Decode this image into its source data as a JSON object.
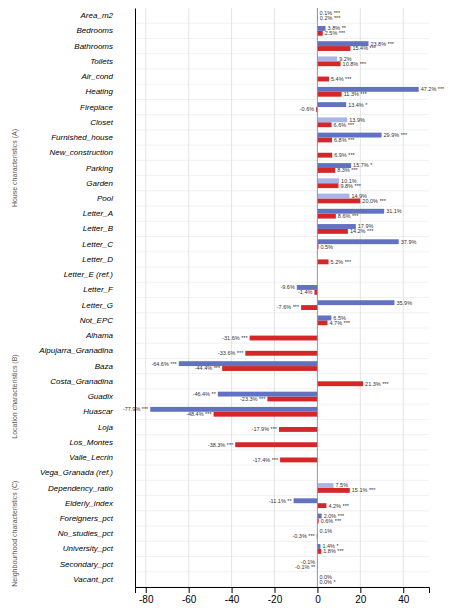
{
  "chart_data": {
    "type": "bar",
    "orientation": "horizontal",
    "grid": true,
    "data_labels": true,
    "categories": [
      "Area_m2",
      "Bedrooms",
      "Bathrooms",
      "Toilets",
      "Air_cond",
      "Heating",
      "Fireplace",
      "Closet",
      "Furnished_house",
      "New_construction",
      "Parking",
      "Garden",
      "Pool",
      "Letter_A",
      "Letter_B",
      "Letter_C",
      "Letter_D",
      "Letter_E (ref.)",
      "Letter_F",
      "Letter_G",
      "Not_EPC",
      "Alhama",
      "Alpujarra_Granadina",
      "Baza",
      "Costa_Granadina",
      "Guadix",
      "Huascar",
      "Loja",
      "Los_Montes",
      "Valle_Lecrin",
      "Vega_Granada (ref.)",
      "Dependency_ratio",
      "Elderly_index",
      "Foreigners_pct",
      "No_studies_pct",
      "University_pct",
      "Secondary_pct",
      "Vacant_pct"
    ],
    "series": [
      {
        "color": "#d62728",
        "values": [
          0.2,
          2.5,
          15.4,
          10.8,
          5.4,
          11.3,
          -0.6,
          6.6,
          6.8,
          6.9,
          8.3,
          9.8,
          20.0,
          8.6,
          14.2,
          0.5,
          5.2,
          0.0,
          -1.4,
          -7.6,
          4.7,
          -31.6,
          -33.6,
          -44.4,
          21.3,
          -23.3,
          -48.4,
          -17.9,
          -38.3,
          -17.4,
          0.0,
          15.1,
          4.2,
          0.6,
          -0.3,
          1.8,
          -0.1,
          0.0
        ],
        "value_labels": [
          "0.2% ***",
          "2.5% ***",
          "15.4% ***",
          "10.8% ***",
          "5.4% ***",
          "11.3% ***",
          "-0.6%",
          "6.6% ***",
          "6.8% ***",
          "6.9% ***",
          "8.3% ***",
          "9.8% ***",
          "20.0% ***",
          "8.6% ***",
          "14.2% ***",
          "0.5%",
          "5.2% ***",
          null,
          "-1.4%",
          "-7.6% ***",
          "4.7% ***",
          "-31.6% ***",
          "-33.6% ***",
          "-44.4% ***",
          "21.3% ***",
          "-23.3% ***",
          "-48.4% ***",
          "-17.9% ***",
          "-38.3% ***",
          "-17.4% ***",
          null,
          "15.1% ***",
          "4.2% ***",
          "0.6% ***",
          "-0.3% ***",
          "1.8% ***",
          "-0.1% **",
          "0.0% *"
        ]
      },
      {
        "colors": [
          "#6272c3",
          "#6272c3",
          "#6272c3",
          "#aab4e8",
          "#6272c3",
          "#6272c3",
          "#6272c3",
          "#aab4e8",
          "#6272c3",
          "#6272c3",
          "#6272c3",
          "#aab4e8",
          "#aab4e8",
          "#6272c3",
          "#6272c3",
          "#6272c3",
          "#6272c3",
          "#6272c3",
          "#6272c3",
          "#6272c3",
          "#6272c3",
          "#6272c3",
          "#6272c3",
          "#6272c3",
          "#6272c3",
          "#6272c3",
          "#6272c3",
          "#6272c3",
          "#6272c3",
          "#6272c3",
          "#6272c3",
          "#aab4e8",
          "#6272c3",
          "#6272c3",
          "#6272c3",
          "#6272c3",
          "#6272c3",
          "#6272c3"
        ],
        "values": [
          0.1,
          3.8,
          23.8,
          9.2,
          0.0,
          47.2,
          13.4,
          13.9,
          29.9,
          0.0,
          15.7,
          10.1,
          14.9,
          31.1,
          17.9,
          37.9,
          0.0,
          0.0,
          -9.6,
          35.9,
          6.5,
          0.0,
          0.0,
          -64.6,
          0.0,
          -46.4,
          -77.9,
          0.0,
          0.0,
          0.0,
          0.0,
          7.5,
          -11.1,
          2.0,
          0.1,
          1.4,
          -0.1,
          0.0
        ],
        "value_labels": [
          "0.1% ***",
          "3.8% **",
          "23.8% ***",
          "9.2%",
          null,
          "47.2% ***",
          "13.4% *",
          "13.9%",
          "29.9% ***",
          null,
          "15.7% *",
          "10.1%",
          "14.9%",
          "31.1%",
          "17.9%",
          "37.9%",
          null,
          null,
          "-9.6%",
          "35.9%",
          "6.5%",
          null,
          null,
          "-64.6% ***",
          null,
          "-46.4% **",
          "-77.9% ***",
          null,
          null,
          null,
          null,
          "7.5%",
          "-11.1% **",
          "2.0% ***",
          "0.1%",
          "1.4% *",
          "-0.1%",
          "0.0%"
        ]
      }
    ],
    "xlim": [
      -85,
      52
    ],
    "xticks": [
      -80,
      -60,
      -40,
      -20,
      0,
      20,
      40
    ],
    "annotations": [
      {
        "text": "House characteristics (A)",
        "categories": [
          "Area_m2",
          "Not_EPC"
        ]
      },
      {
        "text": "Location characteristics (B)",
        "categories": [
          "Alhama",
          "Valle_Lecrin"
        ]
      },
      {
        "text": "Neighbourhood characteristics (C)",
        "categories": [
          "Dependency_ratio",
          "Vacant_pct"
        ]
      }
    ]
  }
}
